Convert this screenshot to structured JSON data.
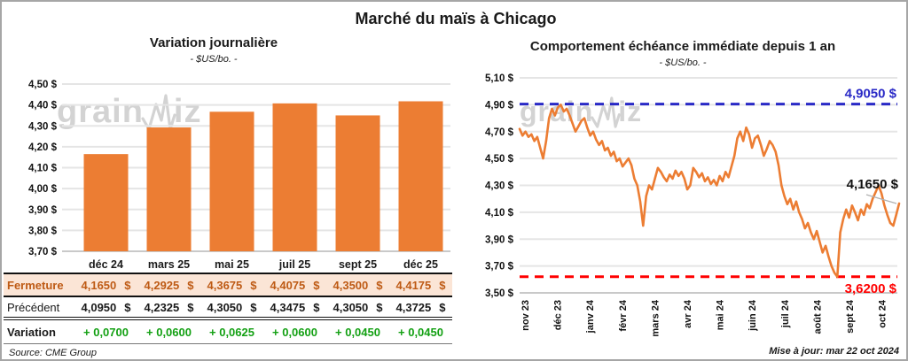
{
  "page": {
    "title": "Marché du maïs à Chicago",
    "update_note": "Mise à jour: mar 22 oct 2024",
    "watermark": {
      "part1": "grain",
      "part2": "iz"
    }
  },
  "colors": {
    "orange": "#ec7d33",
    "peach": "#fbe5d6",
    "rust": "#be5a14",
    "green": "#13a013",
    "blue": "#2929c6",
    "red": "#ff0000",
    "grid": "#e5e5e5",
    "axis": "#c9c9c9",
    "leader": "#b0b0b0"
  },
  "chart_data": [
    {
      "type": "bar",
      "title": "Variation journalière",
      "subtitle": "- $US/bo. -",
      "categories": [
        "déc 24",
        "mars 25",
        "mai 25",
        "juil 25",
        "sept 25",
        "déc 25"
      ],
      "values": [
        4.165,
        4.2925,
        4.3675,
        4.4075,
        4.35,
        4.4175
      ],
      "ylim": [
        3.7,
        4.5
      ],
      "ytick_step": 0.1,
      "grid": true,
      "legend": "none"
    },
    {
      "type": "line",
      "title": "Comportement échéance immédiate depuis 1 an",
      "subtitle": "- $US/bo. -",
      "x_labels": [
        "nov 23",
        "déc 23",
        "janv 24",
        "févr 24",
        "mars 24",
        "avr 24",
        "mai 24",
        "juin 24",
        "juil 24",
        "août 24",
        "sept 24",
        "oct 24"
      ],
      "values": [
        4.72,
        4.67,
        4.7,
        4.66,
        4.68,
        4.63,
        4.66,
        4.58,
        4.5,
        4.63,
        4.8,
        4.87,
        4.82,
        4.88,
        4.9,
        4.85,
        4.87,
        4.82,
        4.76,
        4.7,
        4.74,
        4.78,
        4.8,
        4.73,
        4.67,
        4.7,
        4.64,
        4.6,
        4.63,
        4.56,
        4.58,
        4.52,
        4.55,
        4.48,
        4.5,
        4.44,
        4.47,
        4.5,
        4.45,
        4.35,
        4.3,
        4.18,
        4.0,
        4.22,
        4.3,
        4.27,
        4.35,
        4.43,
        4.4,
        4.36,
        4.33,
        4.38,
        4.35,
        4.41,
        4.37,
        4.4,
        4.35,
        4.27,
        4.3,
        4.43,
        4.4,
        4.36,
        4.39,
        4.33,
        4.36,
        4.31,
        4.34,
        4.3,
        4.37,
        4.33,
        4.4,
        4.36,
        4.44,
        4.52,
        4.65,
        4.7,
        4.63,
        4.73,
        4.68,
        4.58,
        4.65,
        4.67,
        4.6,
        4.52,
        4.57,
        4.63,
        4.6,
        4.55,
        4.45,
        4.3,
        4.22,
        4.16,
        4.2,
        4.12,
        4.18,
        4.1,
        4.05,
        3.98,
        4.02,
        3.95,
        3.9,
        3.96,
        3.88,
        3.8,
        3.85,
        3.77,
        3.7,
        3.65,
        3.62,
        3.95,
        4.05,
        4.12,
        4.06,
        4.15,
        4.1,
        4.04,
        4.12,
        4.08,
        4.16,
        4.13,
        4.2,
        4.25,
        4.3,
        4.24,
        4.15,
        4.08,
        4.02,
        4.0,
        4.08,
        4.165
      ],
      "ylim": [
        3.5,
        5.1
      ],
      "ytick_step": 0.2,
      "grid": true,
      "reference_lines": [
        {
          "value": 4.905,
          "label": "4,9050 $",
          "color": "#2929c6",
          "style": "dashed",
          "label_position": "above-right"
        },
        {
          "value": 3.62,
          "label": "3,6200 $",
          "color": "#ff0000",
          "style": "dashed",
          "label_position": "below-right"
        }
      ],
      "last_point_label": "4,1650 $"
    }
  ],
  "table": {
    "headers": [
      "",
      "déc 24",
      "mars 25",
      "mai 25",
      "juil 25",
      "sept 25",
      "déc 25"
    ],
    "rows": [
      {
        "style": "fermeture",
        "label": "Fermeture",
        "unit": "$",
        "values": [
          "4,1650",
          "4,2925",
          "4,3675",
          "4,4075",
          "4,3500",
          "4,4175"
        ]
      },
      {
        "style": "precedent",
        "label": "Précédent",
        "unit": "$",
        "values": [
          "4,0950",
          "4,2325",
          "4,3050",
          "4,3475",
          "4,3050",
          "4,3725"
        ]
      },
      {
        "style": "variation",
        "label": "Variation",
        "unit": "",
        "values": [
          "+ 0,0700",
          "+ 0,0600",
          "+ 0,0625",
          "+ 0,0600",
          "+ 0,0450",
          "+ 0,0450"
        ]
      }
    ],
    "source": "Source: CME Group"
  }
}
